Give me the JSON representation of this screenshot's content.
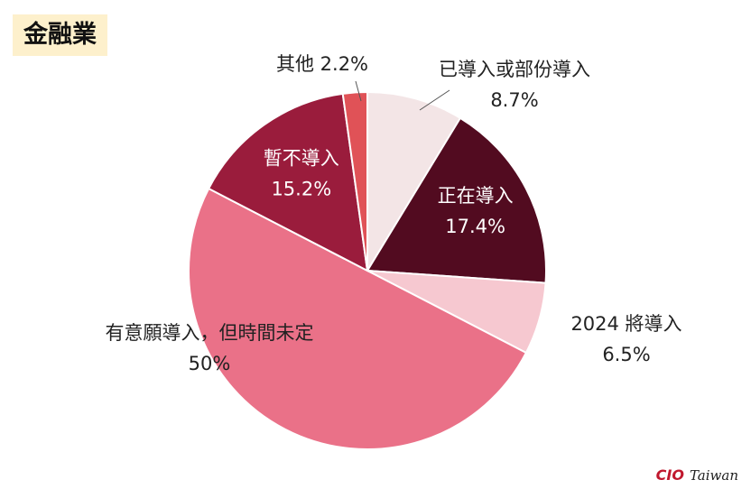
{
  "header": {
    "title": "金融業"
  },
  "brand": {
    "mark": "CIO",
    "name": "Taiwan"
  },
  "chart_data": {
    "type": "pie",
    "title": "金融業",
    "unit": "%",
    "slices": [
      {
        "label": "已導入或部份導入",
        "value": 8.7,
        "display": "8.7%",
        "color": "#f3e5e6",
        "label_color": "#222222"
      },
      {
        "label": "正在導入",
        "value": 17.4,
        "display": "17.4%",
        "color": "#520b20",
        "label_color": "#ffffff"
      },
      {
        "label": "2024 將導入",
        "value": 6.5,
        "display": "6.5%",
        "color": "#f6c8d0",
        "label_color": "#222222"
      },
      {
        "label": "有意願導入，但時間未定",
        "value": 50,
        "display": "50%",
        "color": "#ea7188",
        "label_color": "#222222"
      },
      {
        "label": "暫不導入",
        "value": 15.2,
        "display": "15.2%",
        "color": "#9a1c3c",
        "label_color": "#ffffff"
      },
      {
        "label": "其他",
        "value": 2.2,
        "display": "2.2%",
        "color": "#e05257",
        "label_color": "#222222"
      }
    ]
  }
}
